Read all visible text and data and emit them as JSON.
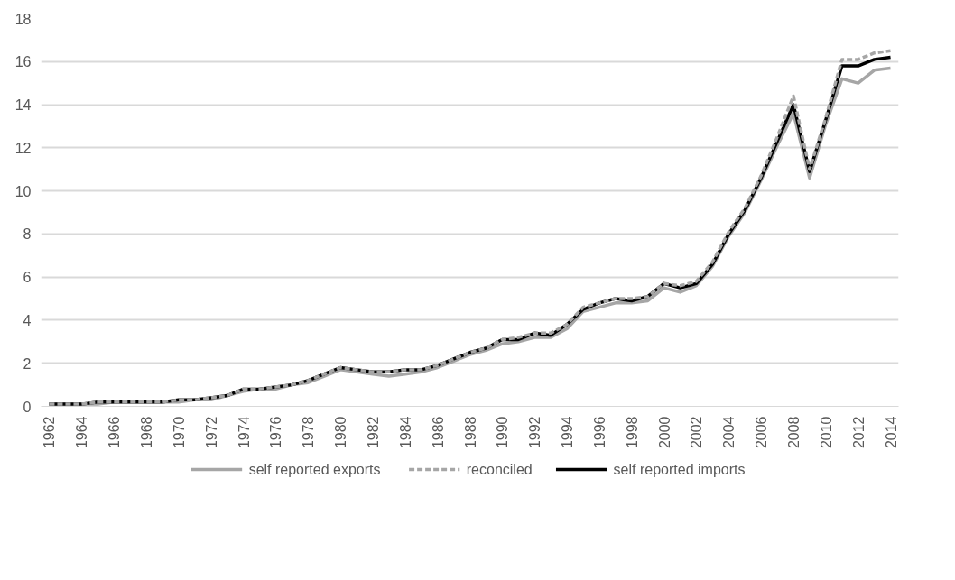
{
  "chart_data": {
    "type": "line",
    "x": [
      1962,
      1963,
      1964,
      1965,
      1966,
      1967,
      1968,
      1969,
      1970,
      1971,
      1972,
      1973,
      1974,
      1975,
      1976,
      1977,
      1978,
      1979,
      1980,
      1981,
      1982,
      1983,
      1984,
      1985,
      1986,
      1987,
      1988,
      1989,
      1990,
      1991,
      1992,
      1993,
      1994,
      1995,
      1996,
      1997,
      1998,
      1999,
      2000,
      2001,
      2002,
      2003,
      2004,
      2005,
      2006,
      2007,
      2008,
      2009,
      2010,
      2011,
      2012,
      2013,
      2014
    ],
    "series": [
      {
        "name": "self reported exports",
        "color": "#a6a6a6",
        "line_style": "solid",
        "values": [
          0.1,
          0.1,
          0.1,
          0.1,
          0.2,
          0.2,
          0.2,
          0.2,
          0.2,
          0.3,
          0.3,
          0.5,
          0.7,
          0.8,
          0.8,
          1.0,
          1.1,
          1.4,
          1.7,
          1.6,
          1.5,
          1.4,
          1.5,
          1.6,
          1.8,
          2.1,
          2.4,
          2.6,
          2.9,
          3.0,
          3.2,
          3.2,
          3.6,
          4.4,
          4.6,
          4.8,
          4.8,
          4.9,
          5.5,
          5.3,
          5.6,
          6.5,
          7.9,
          9.0,
          10.5,
          12.1,
          13.6,
          10.6,
          13.1,
          15.2,
          15.0,
          15.6,
          15.7
        ]
      },
      {
        "name": "reconciled",
        "color": "#a6a6a6",
        "line_style": "dashed",
        "values": [
          0.1,
          0.1,
          0.1,
          0.2,
          0.2,
          0.2,
          0.2,
          0.2,
          0.3,
          0.3,
          0.4,
          0.5,
          0.8,
          0.8,
          0.9,
          1.0,
          1.2,
          1.5,
          1.8,
          1.7,
          1.6,
          1.6,
          1.7,
          1.7,
          1.9,
          2.2,
          2.5,
          2.7,
          3.1,
          3.2,
          3.4,
          3.4,
          3.8,
          4.6,
          4.8,
          5.0,
          5.0,
          5.1,
          5.7,
          5.6,
          5.8,
          6.7,
          8.1,
          9.2,
          10.7,
          12.5,
          14.4,
          11.0,
          13.4,
          16.1,
          16.1,
          16.4,
          16.5
        ]
      },
      {
        "name": "self reported imports",
        "color": "#000000",
        "line_style": "solid",
        "values": [
          0.1,
          0.1,
          0.1,
          0.2,
          0.2,
          0.2,
          0.2,
          0.2,
          0.3,
          0.3,
          0.4,
          0.5,
          0.8,
          0.8,
          0.9,
          1.0,
          1.2,
          1.5,
          1.8,
          1.7,
          1.6,
          1.6,
          1.7,
          1.7,
          1.9,
          2.2,
          2.5,
          2.7,
          3.1,
          3.1,
          3.4,
          3.3,
          3.8,
          4.5,
          4.8,
          5.0,
          4.9,
          5.1,
          5.7,
          5.5,
          5.7,
          6.6,
          8.0,
          9.1,
          10.6,
          12.3,
          14.0,
          10.9,
          13.3,
          15.8,
          15.8,
          16.1,
          16.2
        ]
      }
    ],
    "xlim": [
      1961.5,
      2014.5
    ],
    "xticks": [
      1962,
      1964,
      1966,
      1968,
      1970,
      1972,
      1974,
      1976,
      1978,
      1980,
      1982,
      1984,
      1986,
      1988,
      1990,
      1992,
      1994,
      1996,
      1998,
      2000,
      2002,
      2004,
      2006,
      2008,
      2010,
      2012,
      2014
    ],
    "ylim": [
      0,
      18
    ],
    "yticks": [
      0,
      2,
      4,
      6,
      8,
      10,
      12,
      14,
      16,
      18
    ],
    "grid": "y",
    "legend": "bottom"
  }
}
